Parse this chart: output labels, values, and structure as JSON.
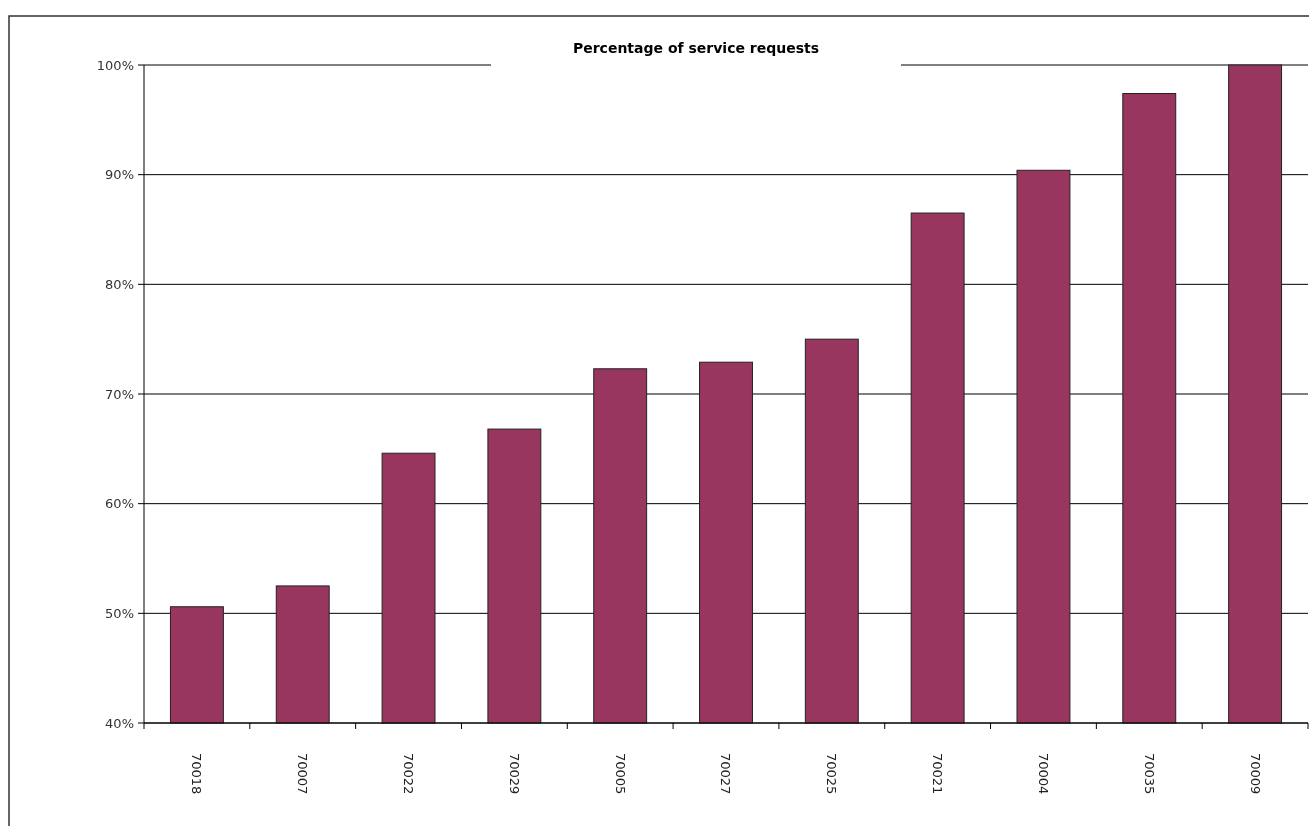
{
  "chart_data": {
    "type": "bar",
    "title": "Percentage of service requests",
    "categories": [
      "70018",
      "70007",
      "70022",
      "70029",
      "70005",
      "70027",
      "70025",
      "70021",
      "70004",
      "70035",
      "70009"
    ],
    "values": [
      50.6,
      52.5,
      64.6,
      66.8,
      72.3,
      72.9,
      75.0,
      86.5,
      90.4,
      97.4,
      100
    ],
    "color": "#993660",
    "ylim": [
      40,
      100
    ],
    "yticks": [
      {
        "value": 40,
        "label": "40%"
      },
      {
        "value": 50,
        "label": "50%"
      },
      {
        "value": 60,
        "label": "60%"
      },
      {
        "value": 70,
        "label": "70%"
      },
      {
        "value": 80,
        "label": "80%"
      },
      {
        "value": 90,
        "label": "90%"
      },
      {
        "value": 100,
        "label": "100%"
      }
    ],
    "grid": "y"
  }
}
